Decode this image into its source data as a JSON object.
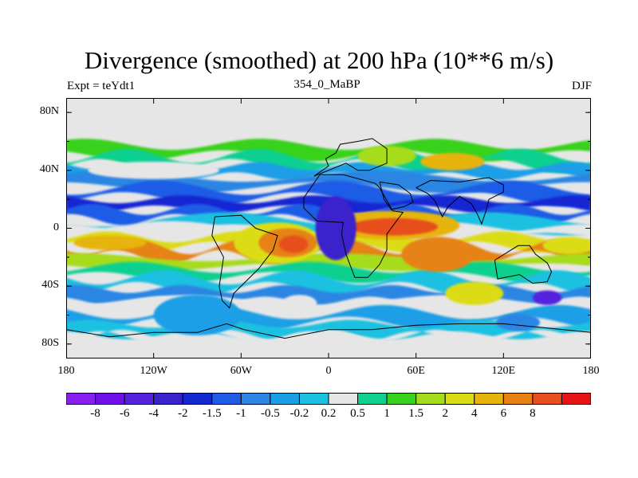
{
  "title": "Divergence (smoothed) at 200 hPa (10**6 m/s)",
  "left_label": "Expt = teYdt1",
  "center_label": "354_0_MaBP",
  "right_label": "DJF",
  "colors": {
    "background_fill": "#e6e6e6",
    "coast": "#000000"
  },
  "map": {
    "projection": "cylindrical-equidistant",
    "lon_range": [
      -180,
      180
    ],
    "lat_range": [
      -90,
      90
    ],
    "y_ticks": [
      {
        "lat": 80,
        "label": "80N"
      },
      {
        "lat": 40,
        "label": "40N"
      },
      {
        "lat": 0,
        "label": "0"
      },
      {
        "lat": -40,
        "label": "40S"
      },
      {
        "lat": -80,
        "label": "80S"
      }
    ],
    "x_ticks": [
      {
        "lon": -180,
        "label": "180"
      },
      {
        "lon": -120,
        "label": "120W"
      },
      {
        "lon": -60,
        "label": "60W"
      },
      {
        "lon": 0,
        "label": "0"
      },
      {
        "lon": 60,
        "label": "60E"
      },
      {
        "lon": 120,
        "label": "120E"
      },
      {
        "lon": 180,
        "label": "180"
      }
    ]
  },
  "colorbar": {
    "boxes": [
      {
        "color": "#8a1df0",
        "label": ""
      },
      {
        "color": "#7010e8",
        "label": "-8"
      },
      {
        "color": "#5522dd",
        "label": "-6"
      },
      {
        "color": "#3a22cc",
        "label": "-4"
      },
      {
        "color": "#1428d2",
        "label": "-2"
      },
      {
        "color": "#1e5ce6",
        "label": "-1.5"
      },
      {
        "color": "#2a86e2",
        "label": "-1"
      },
      {
        "color": "#1a9fe6",
        "label": "-0.5"
      },
      {
        "color": "#1cc0e0",
        "label": "-0.2"
      },
      {
        "color": "#e6e6e6",
        "label": "0.2"
      },
      {
        "color": "#10d090",
        "label": "0.5"
      },
      {
        "color": "#38d21e",
        "label": "1"
      },
      {
        "color": "#a6dc1e",
        "label": "1.5"
      },
      {
        "color": "#dcdc14",
        "label": "2"
      },
      {
        "color": "#e6b40a",
        "label": "4"
      },
      {
        "color": "#e68214",
        "label": "6"
      },
      {
        "color": "#e6501e",
        "label": "8"
      },
      {
        "color": "#e61414",
        "label": ""
      }
    ]
  },
  "field_bands": [
    {
      "lat": 68,
      "level": 9
    },
    {
      "lat": 58,
      "level": 11
    },
    {
      "lat": 50,
      "level": 10
    },
    {
      "lat": 43,
      "level": 7
    },
    {
      "lat": 36,
      "level": 6
    },
    {
      "lat": 28,
      "level": 5
    },
    {
      "lat": 20,
      "level": 4
    },
    {
      "lat": 13,
      "level": 5
    },
    {
      "lat": 6,
      "level": 8
    },
    {
      "lat": 0,
      "level": 9
    },
    {
      "lat": -6,
      "level": 13
    },
    {
      "lat": -13,
      "level": 15
    },
    {
      "lat": -20,
      "level": 12
    },
    {
      "lat": -27,
      "level": 10
    },
    {
      "lat": -34,
      "level": 8
    },
    {
      "lat": -42,
      "level": 6
    },
    {
      "lat": -50,
      "level": 9
    },
    {
      "lat": -58,
      "level": 7
    },
    {
      "lat": -66,
      "level": 8
    },
    {
      "lat": -74,
      "level": 9
    }
  ],
  "field_blobs": [
    {
      "lon": -35,
      "lat": -10,
      "rlon": 30,
      "rlat": 14,
      "level": 13
    },
    {
      "lon": -28,
      "lat": -10,
      "rlon": 20,
      "rlat": 10,
      "level": 15
    },
    {
      "lon": -24,
      "lat": -11,
      "rlon": 10,
      "rlat": 6,
      "level": 16
    },
    {
      "lon": 45,
      "lat": 2,
      "rlon": 45,
      "rlat": 10,
      "level": 14
    },
    {
      "lon": 45,
      "lat": 1,
      "rlon": 30,
      "rlat": 6,
      "level": 16
    },
    {
      "lon": 75,
      "lat": -18,
      "rlon": 25,
      "rlat": 12,
      "level": 15
    },
    {
      "lon": 5,
      "lat": 0,
      "rlon": 14,
      "rlat": 22,
      "level": 3
    },
    {
      "lon": 40,
      "lat": 50,
      "rlon": 20,
      "rlat": 7,
      "level": 12
    },
    {
      "lon": 85,
      "lat": 46,
      "rlon": 22,
      "rlat": 6,
      "level": 14
    },
    {
      "lon": -120,
      "lat": 40,
      "rlon": 45,
      "rlat": 6,
      "level": 9
    },
    {
      "lon": -90,
      "lat": -60,
      "rlon": 30,
      "rlat": 14,
      "level": 7
    },
    {
      "lon": 100,
      "lat": -45,
      "rlon": 20,
      "rlat": 8,
      "level": 13
    },
    {
      "lon": 150,
      "lat": -48,
      "rlon": 10,
      "rlat": 5,
      "level": 2
    },
    {
      "lon": -20,
      "lat": -52,
      "rlon": 12,
      "rlat": 6,
      "level": 9
    },
    {
      "lon": 130,
      "lat": -65,
      "rlon": 15,
      "rlat": 6,
      "level": 6
    },
    {
      "lon": -150,
      "lat": -10,
      "rlon": 25,
      "rlat": 5,
      "level": 14
    },
    {
      "lon": 165,
      "lat": -12,
      "rlon": 18,
      "rlat": 6,
      "level": 13
    }
  ],
  "coastlines": [
    {
      "name": "africa",
      "points": [
        [
          -6,
          37
        ],
        [
          10,
          37
        ],
        [
          32,
          31
        ],
        [
          35,
          28
        ],
        [
          44,
          12
        ],
        [
          51,
          11
        ],
        [
          40,
          -4
        ],
        [
          40,
          -15
        ],
        [
          35,
          -25
        ],
        [
          27,
          -34
        ],
        [
          18,
          -34
        ],
        [
          12,
          -18
        ],
        [
          9,
          -4
        ],
        [
          10,
          4
        ],
        [
          -8,
          5
        ],
        [
          -17,
          14
        ],
        [
          -17,
          21
        ],
        [
          -6,
          37
        ]
      ]
    },
    {
      "name": "south-america",
      "points": [
        [
          -78,
          8
        ],
        [
          -60,
          9
        ],
        [
          -50,
          0
        ],
        [
          -35,
          -5
        ],
        [
          -38,
          -15
        ],
        [
          -48,
          -28
        ],
        [
          -58,
          -38
        ],
        [
          -65,
          -45
        ],
        [
          -68,
          -55
        ],
        [
          -73,
          -50
        ],
        [
          -75,
          -40
        ],
        [
          -72,
          -20
        ],
        [
          -80,
          -5
        ],
        [
          -78,
          8
        ]
      ]
    },
    {
      "name": "arabia",
      "points": [
        [
          35,
          32
        ],
        [
          48,
          30
        ],
        [
          56,
          24
        ],
        [
          58,
          18
        ],
        [
          52,
          15
        ],
        [
          43,
          13
        ],
        [
          38,
          20
        ],
        [
          35,
          32
        ]
      ]
    },
    {
      "name": "india-asia",
      "points": [
        [
          60,
          28
        ],
        [
          68,
          24
        ],
        [
          73,
          19
        ],
        [
          78,
          8
        ],
        [
          82,
          15
        ],
        [
          90,
          22
        ],
        [
          98,
          17
        ],
        [
          102,
          10
        ],
        [
          105,
          3
        ],
        [
          108,
          12
        ],
        [
          110,
          20
        ],
        [
          120,
          25
        ],
        [
          120,
          30
        ],
        [
          110,
          35
        ],
        [
          90,
          32
        ],
        [
          70,
          33
        ],
        [
          60,
          28
        ]
      ]
    },
    {
      "name": "australia",
      "points": [
        [
          114,
          -22
        ],
        [
          130,
          -12
        ],
        [
          138,
          -12
        ],
        [
          142,
          -18
        ],
        [
          150,
          -24
        ],
        [
          153,
          -30
        ],
        [
          150,
          -37
        ],
        [
          140,
          -38
        ],
        [
          131,
          -32
        ],
        [
          116,
          -35
        ],
        [
          114,
          -22
        ]
      ]
    },
    {
      "name": "europe",
      "points": [
        [
          -10,
          36
        ],
        [
          0,
          43
        ],
        [
          -2,
          48
        ],
        [
          5,
          52
        ],
        [
          8,
          58
        ],
        [
          20,
          60
        ],
        [
          30,
          62
        ],
        [
          40,
          55
        ],
        [
          40,
          45
        ],
        [
          28,
          40
        ],
        [
          20,
          40
        ],
        [
          12,
          45
        ],
        [
          0,
          40
        ],
        [
          -10,
          36
        ]
      ]
    },
    {
      "name": "antarctica",
      "points": [
        [
          -180,
          -70
        ],
        [
          -150,
          -75
        ],
        [
          -120,
          -72
        ],
        [
          -90,
          -72
        ],
        [
          -70,
          -66
        ],
        [
          -58,
          -70
        ],
        [
          -30,
          -76
        ],
        [
          0,
          -70
        ],
        [
          30,
          -70
        ],
        [
          60,
          -67
        ],
        [
          90,
          -66
        ],
        [
          120,
          -66
        ],
        [
          150,
          -69
        ],
        [
          180,
          -72
        ]
      ]
    }
  ]
}
